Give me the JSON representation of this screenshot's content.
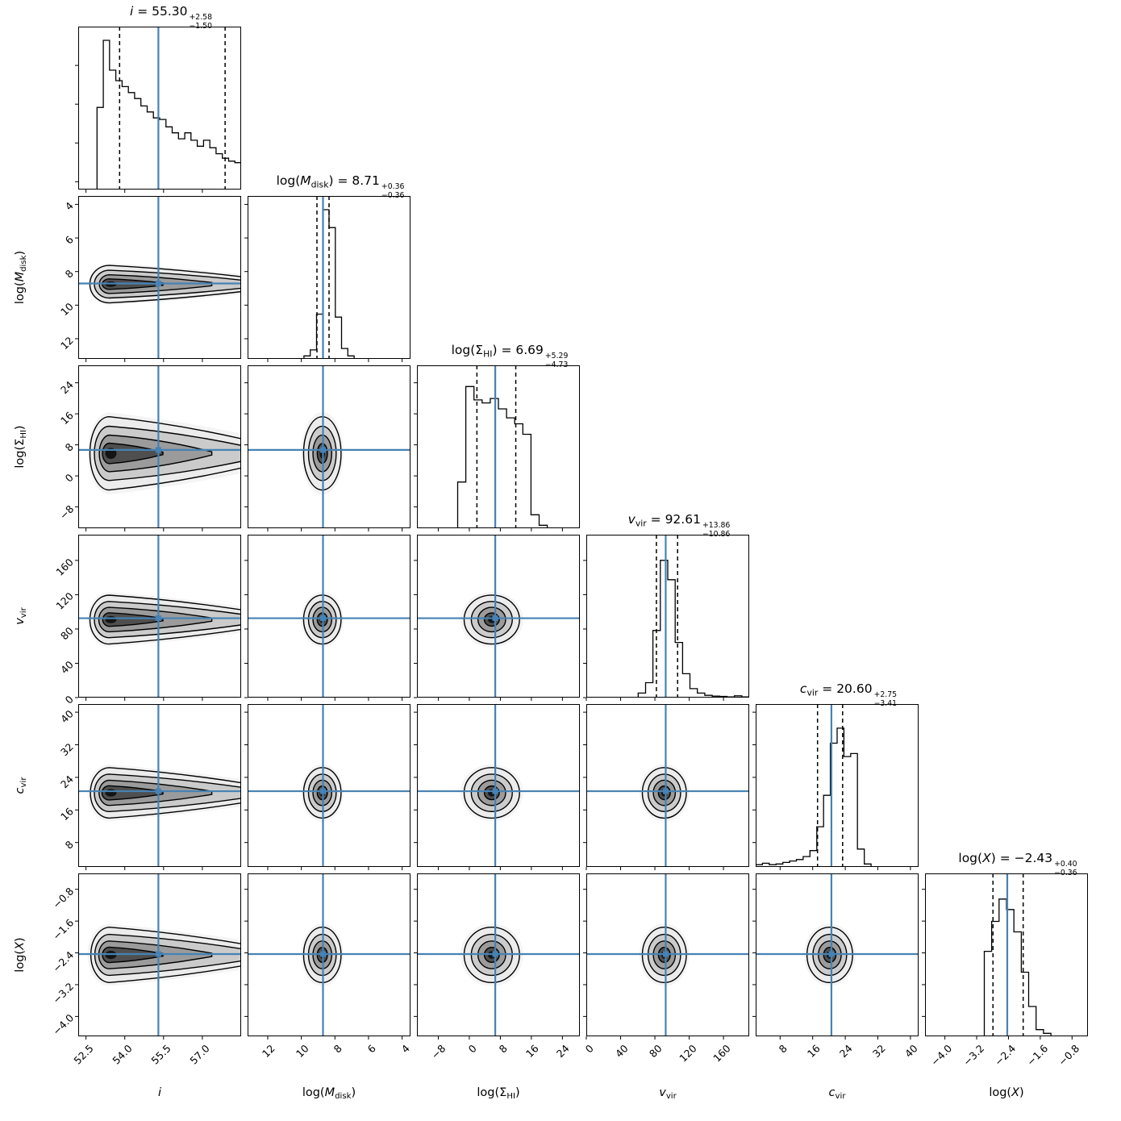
{
  "figure": {
    "background": "#ffffff",
    "accent_color": "#4682B4",
    "line_color": "#000000",
    "contour_fill_levels": [
      "#f4f4f4",
      "#ececec",
      "#cbcbcb",
      "#9b9b9b",
      "#4f4f4f",
      "#141414"
    ]
  },
  "chart_data": {
    "type": "corner_plot",
    "n_params": 6,
    "grid": "6x6 lower triangle; diagonals are 1D marginal histograms, off-diagonals are 2D contour posteriors with truth crosshairs",
    "params": [
      {
        "name": "i",
        "label_text": "i",
        "title_text": "i = 55.30 +2.58 / −1.50",
        "label": {
          "pre": "",
          "var": "i",
          "italic": true,
          "sub": "",
          "post": ""
        },
        "title": {
          "eq": " = ",
          "value": "55.30",
          "plus": "+2.58",
          "minus": "−1.50"
        },
        "median": 55.3,
        "err_plus": 2.58,
        "err_minus": 1.5,
        "truth": 55.3,
        "ci": [
          53.8,
          57.88
        ],
        "axis": {
          "range": [
            52.2,
            58.5
          ],
          "ticks": [
            52.5,
            54.0,
            55.5,
            57.0
          ],
          "tick_labels": [
            "52.5",
            "54.0",
            "55.5",
            "57.0"
          ]
        },
        "hist": [
          0,
          0,
          0,
          0.55,
          1.0,
          0.8,
          0.73,
          0.69,
          0.65,
          0.61,
          0.56,
          0.52,
          0.48,
          0.47,
          0.42,
          0.38,
          0.34,
          0.38,
          0.33,
          0.29,
          0.33,
          0.28,
          0.24,
          0.21,
          0.19,
          0.18
        ],
        "blob": {
          "shape": "comet",
          "center": 53.4,
          "spread": [
            0.45,
            0.2
          ]
        }
      },
      {
        "name": "log_Mdisk",
        "label_text": "log(M_disk)",
        "title_text": "log(M_disk) = 8.71 +0.36 / −0.36",
        "label": {
          "pre": "log(",
          "var": "M",
          "italic": true,
          "sub": "disk",
          "post": ")"
        },
        "title": {
          "eq": " = ",
          "value": "8.71",
          "plus": "+0.36",
          "minus": "−0.36"
        },
        "median": 8.71,
        "err_plus": 0.36,
        "err_minus": 0.36,
        "truth": 8.71,
        "ci": [
          9.07,
          8.35
        ],
        "axis": {
          "range": [
            13.2,
            3.5
          ],
          "ticks": [
            12,
            10,
            8,
            6,
            4
          ],
          "tick_labels": [
            "12",
            "10",
            "8",
            "6",
            "4"
          ]
        },
        "hist": [
          0,
          0,
          0,
          0,
          0,
          0,
          0,
          0,
          0,
          0.02,
          0.06,
          0.3,
          1.0,
          0.88,
          0.28,
          0.07,
          0.02,
          0,
          0,
          0,
          0,
          0,
          0,
          0,
          0,
          0
        ],
        "blob": {
          "shape": "ellipse",
          "center": 8.75,
          "spread": [
            0.115,
            0.115
          ]
        }
      },
      {
        "name": "log_SigmaHI",
        "label_text": "log(Σ_HI)",
        "title_text": "log(Σ_HI) = 6.69 +5.29 / −4.73",
        "label": {
          "pre": "log(",
          "var": "Σ",
          "italic": false,
          "sub": "HI",
          "post": ")"
        },
        "title": {
          "eq": " = ",
          "value": "6.69",
          "plus": "+5.29",
          "minus": "−4.73"
        },
        "median": 6.69,
        "err_plus": 5.29,
        "err_minus": 4.73,
        "truth": 6.69,
        "ci": [
          1.96,
          11.98
        ],
        "axis": {
          "range": [
            -13.5,
            28.5
          ],
          "ticks": [
            -8,
            0,
            8,
            16,
            24
          ],
          "tick_labels": [
            "−8",
            "0",
            "8",
            "16",
            "24"
          ]
        },
        "hist": [
          0,
          0,
          0,
          0,
          0,
          0.31,
          0.95,
          0.86,
          0.84,
          0.87,
          0.8,
          0.74,
          0.7,
          0.63,
          0.09,
          0.02,
          0,
          0,
          0,
          0
        ],
        "blob": {
          "shape": "ellipse",
          "center": 5.8,
          "spread": [
            0.17,
            0.225
          ]
        }
      },
      {
        "name": "v_vir",
        "label_text": "v_vir",
        "title_text": "v_vir = 92.61 +13.86 / −10.86",
        "label": {
          "pre": "",
          "var": "v",
          "italic": true,
          "sub": "vir",
          "post": ""
        },
        "title": {
          "eq": " = ",
          "value": "92.61",
          "plus": "+13.86",
          "minus": "−10.86"
        },
        "median": 92.61,
        "err_plus": 13.86,
        "err_minus": 10.86,
        "truth": 92.61,
        "ci": [
          81.75,
          106.47
        ],
        "axis": {
          "range": [
            0,
            190
          ],
          "ticks": [
            0,
            40,
            80,
            120,
            160
          ],
          "tick_labels": [
            "0",
            "40",
            "80",
            "120",
            "160"
          ]
        },
        "hist": [
          0,
          0,
          0,
          0,
          0,
          0,
          0,
          0.03,
          0.1,
          0.45,
          0.92,
          0.79,
          0.37,
          0.16,
          0.06,
          0.03,
          0.015,
          0.01,
          0.008,
          0.005,
          0.012,
          0.005
        ],
        "blob": {
          "shape": "ellipse",
          "center": 91,
          "spread": [
            0.135,
            0.15
          ]
        }
      },
      {
        "name": "c_vir",
        "label_text": "c_vir",
        "title_text": "c_vir = 20.60 +2.75 / −3.41",
        "label": {
          "pre": "",
          "var": "c",
          "italic": true,
          "sub": "vir",
          "post": ""
        },
        "title": {
          "eq": " = ",
          "value": "20.60",
          "plus": "+2.75",
          "minus": "−3.41"
        },
        "median": 20.6,
        "err_plus": 2.75,
        "err_minus": 3.41,
        "truth": 20.6,
        "ci": [
          17.19,
          23.35
        ],
        "axis": {
          "range": [
            2,
            42
          ],
          "ticks": [
            8,
            16,
            24,
            32,
            40
          ],
          "tick_labels": [
            "8",
            "16",
            "24",
            "32",
            "40"
          ]
        },
        "hist": [
          0.015,
          0.025,
          0.015,
          0.02,
          0.03,
          0.04,
          0.05,
          0.07,
          0.11,
          0.27,
          0.48,
          0.83,
          0.93,
          0.74,
          0.76,
          0.12,
          0.02,
          0,
          0,
          0,
          0,
          0,
          0,
          0
        ],
        "blob": {
          "shape": "ellipse",
          "center": 20.2,
          "spread": [
            0.14,
            0.155
          ]
        }
      },
      {
        "name": "log_X",
        "label_text": "log(X)",
        "title_text": "log(X) = −2.43 +0.40 / −0.36",
        "label": {
          "pre": "log(",
          "var": "X",
          "italic": true,
          "sub": "",
          "post": ")"
        },
        "title": {
          "eq": " = ",
          "value": "−2.43",
          "plus": "+0.40",
          "minus": "−0.36"
        },
        "median": -2.43,
        "err_plus": 0.4,
        "err_minus": 0.36,
        "truth": -2.43,
        "ci": [
          -2.79,
          -2.03
        ],
        "axis": {
          "range": [
            -4.5,
            -0.4
          ],
          "ticks": [
            -4.0,
            -3.2,
            -2.4,
            -1.6,
            -0.8
          ],
          "tick_labels": [
            "−4.0",
            "−3.2",
            "−2.4",
            "−1.6",
            "−0.8"
          ]
        },
        "hist": [
          0,
          0,
          0,
          0,
          0,
          0,
          0,
          0,
          0.57,
          0.77,
          0.92,
          0.85,
          0.7,
          0.43,
          0.2,
          0.045,
          0.02,
          0,
          0,
          0,
          0,
          0
        ],
        "blob": {
          "shape": "ellipse",
          "center": -2.45,
          "spread": [
            0.16,
            0.17
          ]
        }
      }
    ]
  }
}
